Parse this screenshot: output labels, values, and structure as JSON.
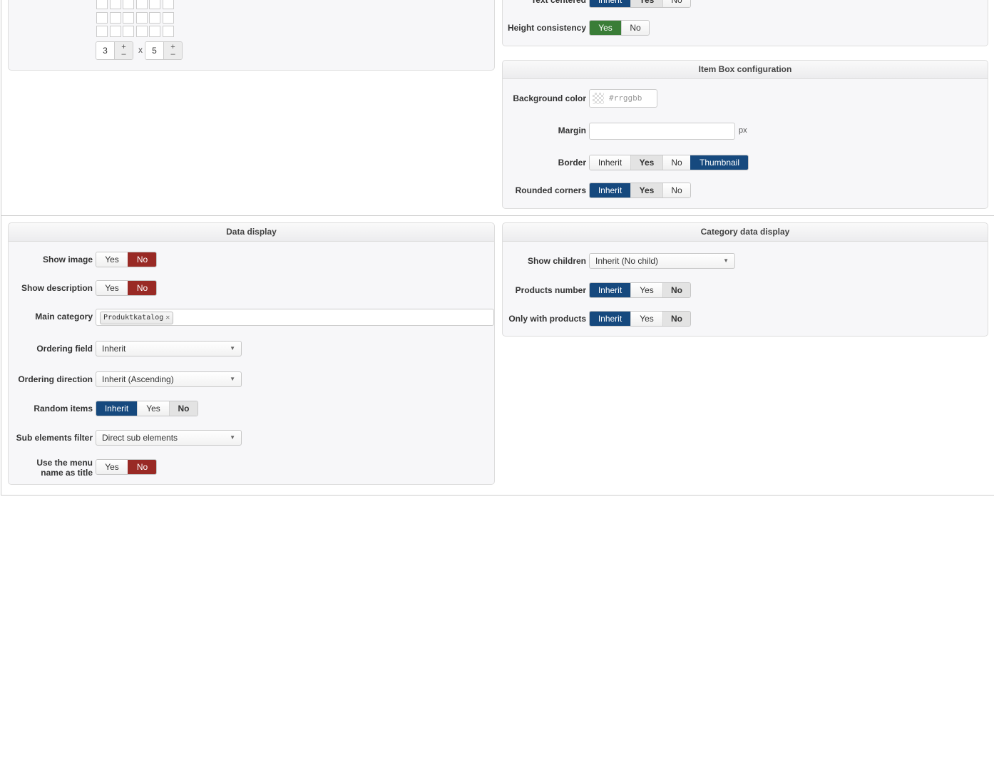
{
  "grid_picker": {
    "rows_value": "3",
    "cols_value": "5",
    "times": "x",
    "plus": "+",
    "minus": "–"
  },
  "top_right": {
    "rows": [
      {
        "label": "Text centered",
        "type": "seg",
        "options": [
          {
            "t": "Inherit",
            "s": "blue",
            "w": 57
          },
          {
            "t": "Yes",
            "s": "muted",
            "w": 44
          },
          {
            "t": "No",
            "s": "",
            "w": 38
          }
        ]
      },
      {
        "label": "Height consistency",
        "type": "seg",
        "options": [
          {
            "t": "Yes",
            "s": "green",
            "w": 44
          },
          {
            "t": "No",
            "s": "",
            "w": 38
          }
        ]
      }
    ]
  },
  "item_box": {
    "title": "Item Box configuration",
    "rows": [
      {
        "label": "Background color",
        "type": "color",
        "placeholder": "#rrggbb"
      },
      {
        "label": "Margin",
        "type": "text",
        "value": "",
        "unit": "px"
      },
      {
        "label": "Border",
        "type": "seg",
        "options": [
          {
            "t": "Inherit",
            "s": "",
            "w": 57
          },
          {
            "t": "Yes",
            "s": "muted",
            "w": 44
          },
          {
            "t": "No",
            "s": "",
            "w": 38
          },
          {
            "t": "Thumbnail",
            "s": "blue",
            "w": 80
          }
        ]
      },
      {
        "label": "Rounded corners",
        "type": "seg",
        "options": [
          {
            "t": "Inherit",
            "s": "blue",
            "w": 57
          },
          {
            "t": "Yes",
            "s": "muted",
            "w": 44
          },
          {
            "t": "No",
            "s": "",
            "w": 38
          }
        ]
      }
    ]
  },
  "data_display": {
    "title": "Data display",
    "rows": [
      {
        "label": "Show image",
        "type": "seg",
        "options": [
          {
            "t": "Yes",
            "s": "",
            "w": 44
          },
          {
            "t": "No",
            "s": "red",
            "w": 39
          }
        ]
      },
      {
        "label": "Show description",
        "type": "seg",
        "options": [
          {
            "t": "Yes",
            "s": "",
            "w": 44
          },
          {
            "t": "No",
            "s": "red",
            "w": 39
          }
        ]
      },
      {
        "label": "Main category",
        "type": "tags",
        "tags": [
          "Produktkatalog"
        ]
      },
      {
        "label": "Ordering field",
        "type": "select",
        "value": "Inherit"
      },
      {
        "label": "Ordering direction",
        "type": "select",
        "value": "Inherit (Ascending)"
      },
      {
        "label": "Random items",
        "type": "seg",
        "options": [
          {
            "t": "Inherit",
            "s": "blue",
            "w": 57
          },
          {
            "t": "Yes",
            "s": "",
            "w": 44
          },
          {
            "t": "No",
            "s": "muted",
            "w": 39
          }
        ]
      },
      {
        "label": "Sub elements filter",
        "type": "select",
        "value": "Direct sub elements"
      },
      {
        "label": "Use the menu name as title",
        "type": "seg",
        "options": [
          {
            "t": "Yes",
            "s": "",
            "w": 44
          },
          {
            "t": "No",
            "s": "red",
            "w": 39
          }
        ]
      }
    ]
  },
  "category_display": {
    "title": "Category data display",
    "rows": [
      {
        "label": "Show children",
        "type": "select",
        "value": "Inherit (No child)"
      },
      {
        "label": "Products number",
        "type": "seg",
        "options": [
          {
            "t": "Inherit",
            "s": "blue",
            "w": 57
          },
          {
            "t": "Yes",
            "s": "",
            "w": 44
          },
          {
            "t": "No",
            "s": "muted",
            "w": 38
          }
        ]
      },
      {
        "label": "Only with products",
        "type": "seg",
        "options": [
          {
            "t": "Inherit",
            "s": "blue",
            "w": 57
          },
          {
            "t": "Yes",
            "s": "",
            "w": 44
          },
          {
            "t": "No",
            "s": "muted",
            "w": 38
          }
        ]
      }
    ]
  },
  "colors": {
    "active_blue": "#16497e",
    "active_red": "#992a25",
    "active_green": "#3a7d37"
  }
}
